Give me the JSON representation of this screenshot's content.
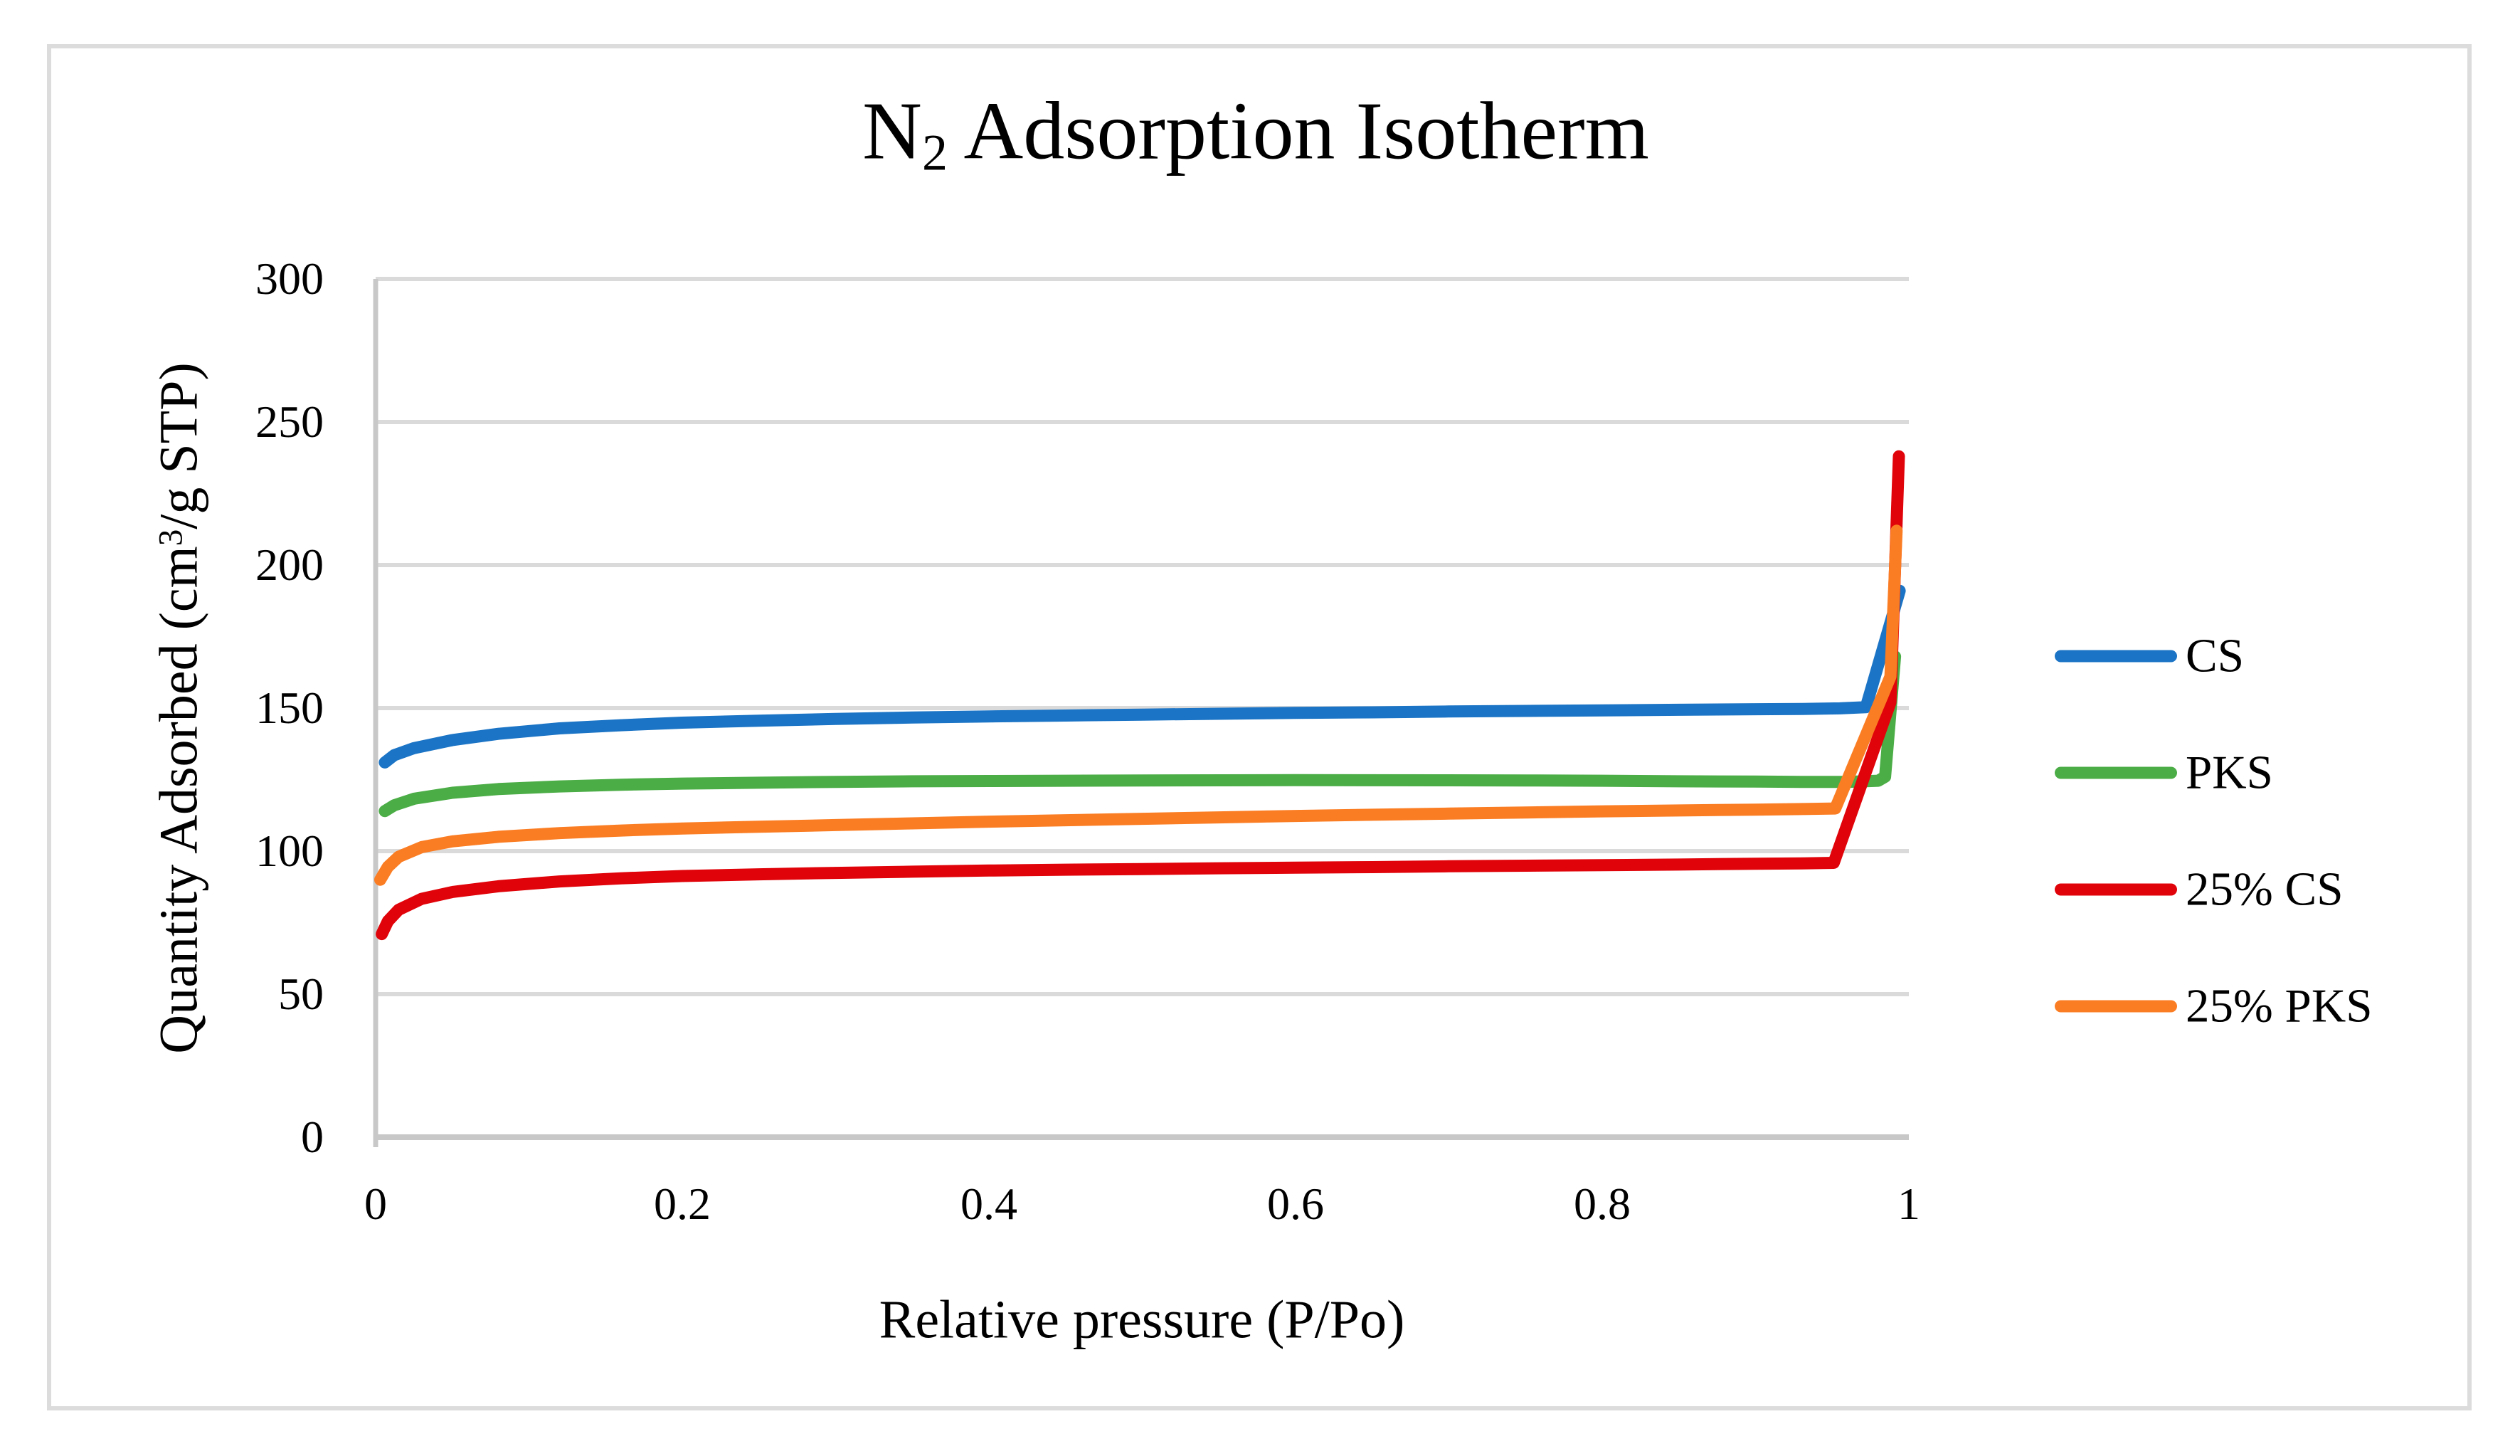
{
  "figure": {
    "kind": "excel-style line chart in a document figure"
  },
  "chart_data": {
    "type": "line",
    "title": "N2 Adsorption Isotherm",
    "title_parts": {
      "base": "N",
      "sub": "2",
      "rest": " Adsorption Isotherm"
    },
    "xlabel": "Relative pressure (P/Po)",
    "ylabel": "Quantity Adsorbed (cm³/g STP)",
    "ylabel_parts": {
      "pre": "Quantity Adsorbed (cm",
      "sup": "3",
      "post": "/g STP)"
    },
    "xlim": [
      0,
      1
    ],
    "ylim": [
      0,
      300
    ],
    "grid": "horizontal",
    "legend_position": "right",
    "x_ticks": [
      {
        "value": 0,
        "label": "0"
      },
      {
        "value": 0.2,
        "label": "0.2"
      },
      {
        "value": 0.4,
        "label": "0.4"
      },
      {
        "value": 0.6,
        "label": "0.6"
      },
      {
        "value": 0.8,
        "label": "0.8"
      },
      {
        "value": 1,
        "label": "1"
      }
    ],
    "y_ticks": [
      {
        "value": 0,
        "label": "0"
      },
      {
        "value": 50,
        "label": "50"
      },
      {
        "value": 100,
        "label": "100"
      },
      {
        "value": 150,
        "label": "150"
      },
      {
        "value": 200,
        "label": "200"
      },
      {
        "value": 250,
        "label": "250"
      },
      {
        "value": 300,
        "label": "300"
      }
    ],
    "colors": {
      "gridline": "#DADADA",
      "axis": "#C8C8C8",
      "border": "#DCDCDC",
      "text": "#000000"
    },
    "series": [
      {
        "name": "CS",
        "color": "#1B74C5",
        "points": [
          [
            0.006,
            131
          ],
          [
            0.012,
            133.5
          ],
          [
            0.025,
            136
          ],
          [
            0.05,
            138.8
          ],
          [
            0.08,
            141
          ],
          [
            0.12,
            142.9
          ],
          [
            0.16,
            144
          ],
          [
            0.2,
            144.9
          ],
          [
            0.25,
            145.6
          ],
          [
            0.3,
            146.2
          ],
          [
            0.35,
            146.7
          ],
          [
            0.4,
            147.1
          ],
          [
            0.45,
            147.4
          ],
          [
            0.5,
            147.7
          ],
          [
            0.55,
            148
          ],
          [
            0.6,
            148.3
          ],
          [
            0.65,
            148.5
          ],
          [
            0.7,
            148.8
          ],
          [
            0.75,
            149
          ],
          [
            0.8,
            149.2
          ],
          [
            0.85,
            149.4
          ],
          [
            0.9,
            149.6
          ],
          [
            0.93,
            149.7
          ],
          [
            0.955,
            149.9
          ],
          [
            0.972,
            150.3
          ],
          [
            0.994,
            191
          ]
        ]
      },
      {
        "name": "PKS",
        "color": "#4BAD46",
        "points": [
          [
            0.006,
            114
          ],
          [
            0.012,
            116
          ],
          [
            0.025,
            118.3
          ],
          [
            0.05,
            120.4
          ],
          [
            0.08,
            121.7
          ],
          [
            0.12,
            122.6
          ],
          [
            0.16,
            123.2
          ],
          [
            0.2,
            123.6
          ],
          [
            0.25,
            123.9
          ],
          [
            0.3,
            124.2
          ],
          [
            0.35,
            124.4
          ],
          [
            0.4,
            124.5
          ],
          [
            0.45,
            124.6
          ],
          [
            0.5,
            124.7
          ],
          [
            0.6,
            124.8
          ],
          [
            0.7,
            124.75
          ],
          [
            0.75,
            124.7
          ],
          [
            0.8,
            124.6
          ],
          [
            0.85,
            124.4
          ],
          [
            0.9,
            124.3
          ],
          [
            0.93,
            124.2
          ],
          [
            0.96,
            124.2
          ],
          [
            0.98,
            124.6
          ],
          [
            0.9845,
            126
          ],
          [
            0.991,
            168
          ]
        ]
      },
      {
        "name": "25% CS",
        "color": "#E00309",
        "points": [
          [
            0.004,
            71
          ],
          [
            0.008,
            75.5
          ],
          [
            0.015,
            79.5
          ],
          [
            0.03,
            83.3
          ],
          [
            0.05,
            85.7
          ],
          [
            0.08,
            87.7
          ],
          [
            0.12,
            89.4
          ],
          [
            0.16,
            90.5
          ],
          [
            0.2,
            91.3
          ],
          [
            0.25,
            91.9
          ],
          [
            0.3,
            92.4
          ],
          [
            0.35,
            92.8
          ],
          [
            0.4,
            93.2
          ],
          [
            0.45,
            93.5
          ],
          [
            0.5,
            93.7
          ],
          [
            0.55,
            94
          ],
          [
            0.6,
            94.2
          ],
          [
            0.65,
            94.4
          ],
          [
            0.7,
            94.7
          ],
          [
            0.75,
            94.9
          ],
          [
            0.8,
            95.1
          ],
          [
            0.85,
            95.3
          ],
          [
            0.9,
            95.6
          ],
          [
            0.93,
            95.7
          ],
          [
            0.951,
            95.9
          ],
          [
            0.988,
            152
          ],
          [
            0.9935,
            238
          ]
        ]
      },
      {
        "name": "25% PKS",
        "color": "#FB7D23",
        "points": [
          [
            0.003,
            90
          ],
          [
            0.008,
            94.5
          ],
          [
            0.015,
            98
          ],
          [
            0.03,
            101.4
          ],
          [
            0.05,
            103.4
          ],
          [
            0.08,
            105
          ],
          [
            0.12,
            106.3
          ],
          [
            0.16,
            107.2
          ],
          [
            0.2,
            107.9
          ],
          [
            0.25,
            108.5
          ],
          [
            0.3,
            109.1
          ],
          [
            0.35,
            109.7
          ],
          [
            0.4,
            110.3
          ],
          [
            0.45,
            110.8
          ],
          [
            0.5,
            111.3
          ],
          [
            0.55,
            111.8
          ],
          [
            0.6,
            112.3
          ],
          [
            0.65,
            112.7
          ],
          [
            0.7,
            113.1
          ],
          [
            0.75,
            113.5
          ],
          [
            0.8,
            113.9
          ],
          [
            0.85,
            114.2
          ],
          [
            0.9,
            114.5
          ],
          [
            0.93,
            114.7
          ],
          [
            0.952,
            114.9
          ],
          [
            0.988,
            161
          ],
          [
            0.992,
            212
          ]
        ]
      }
    ]
  }
}
